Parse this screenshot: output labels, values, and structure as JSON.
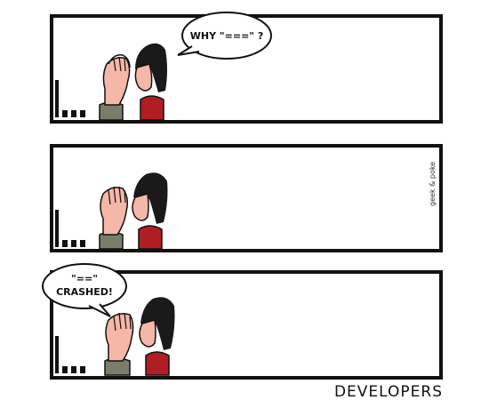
{
  "comic": {
    "panel1": {
      "speech": "WHY \"===\" ?"
    },
    "panel2": {
      "credit": "geek & poke"
    },
    "panel3": {
      "speech_line1": "\"==\"",
      "speech_line2": "CRASHED!"
    },
    "caption": "DEVELOPERS"
  },
  "colors": {
    "skin": "#f5b7a8",
    "hair_woman": "#1a1a1a",
    "shirt_woman": "#b01e23",
    "shirt_man": "#7a7d6a",
    "frame": "#111111"
  }
}
